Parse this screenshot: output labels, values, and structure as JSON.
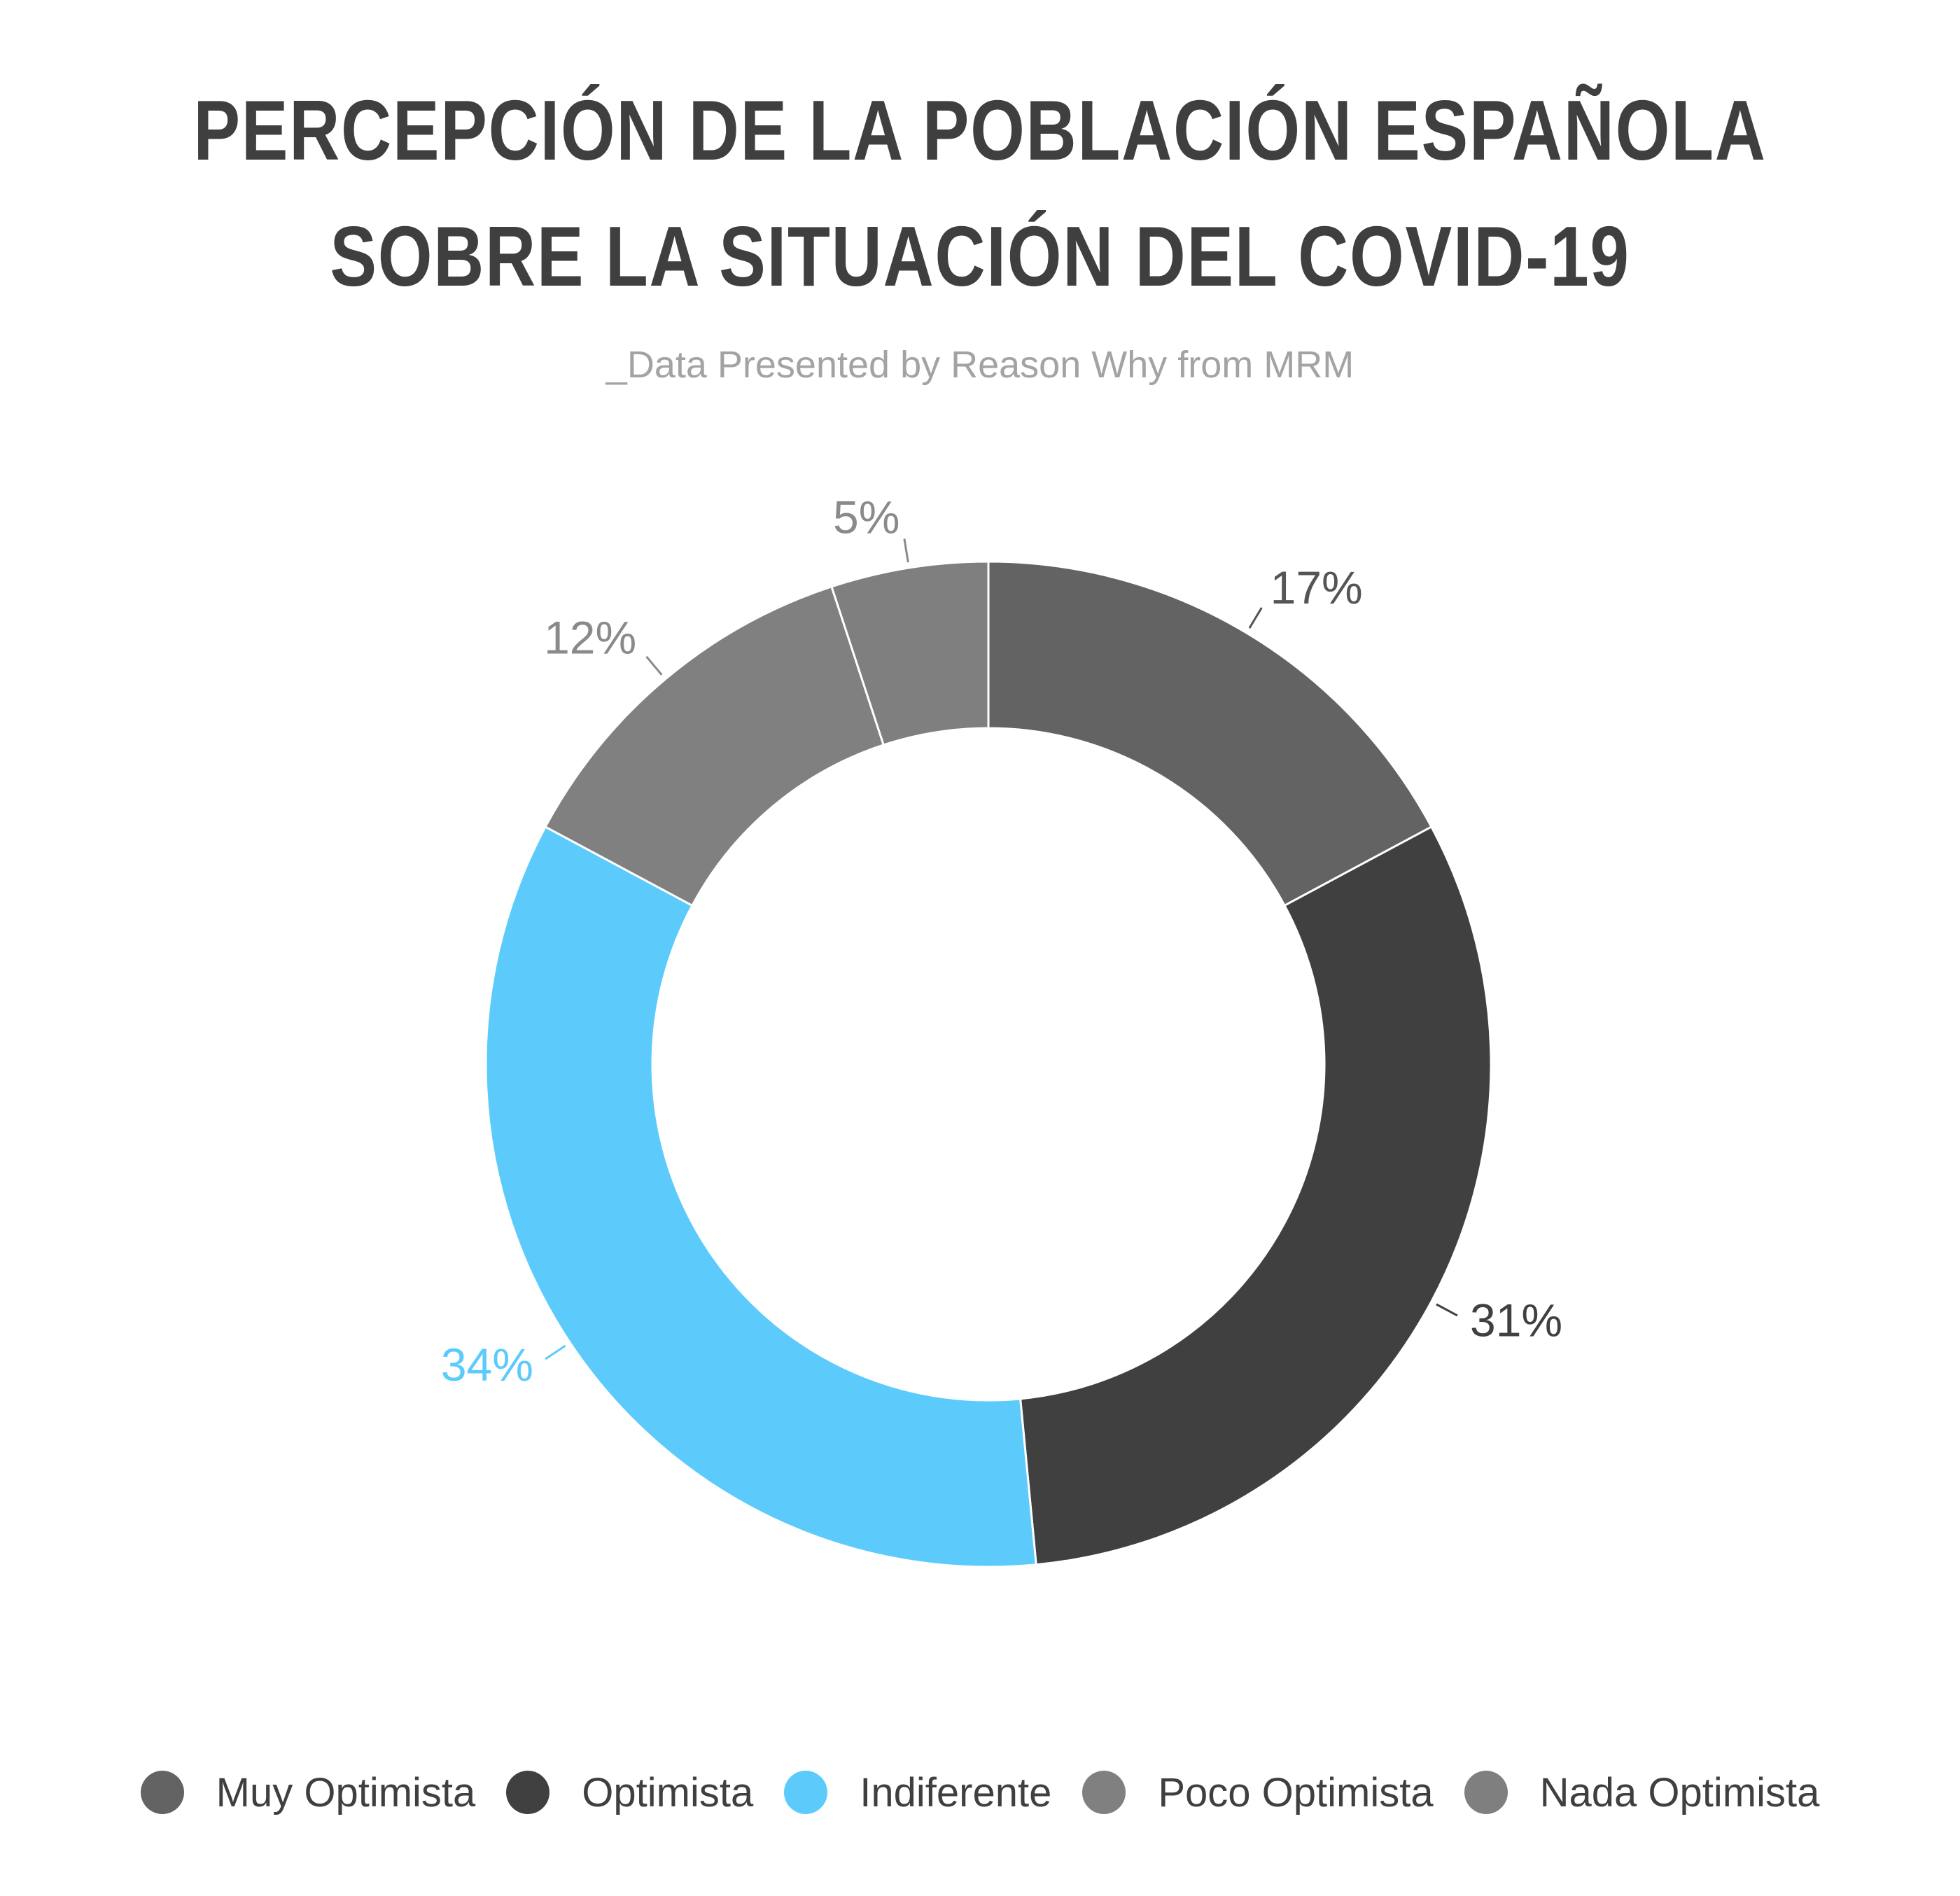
{
  "chart_data": {
    "type": "pie",
    "variant": "donut",
    "title_lines": [
      "PERCEPCIÓN DE LA POBLACIÓN ESPAÑOLA",
      "SOBRE LA SITUACIÓN DEL COVID-19"
    ],
    "subtitle": "_Data Presented by Reason Why from MRM",
    "legend_position": "bottom",
    "slices": [
      {
        "label": "Muy Optimista",
        "value": 17,
        "display": "17%",
        "color": "#636363",
        "label_color": "#555555"
      },
      {
        "label": "Optimista",
        "value": 31,
        "display": "31%",
        "color": "#404040",
        "label_color": "#404040"
      },
      {
        "label": "Indiferente",
        "value": 34,
        "display": "34%",
        "color": "#5ccbfc",
        "label_color": "#5ccbfc"
      },
      {
        "label": "Poco Optimista",
        "value": 12,
        "display": "12%",
        "color": "#808080",
        "label_color": "#8a8a8a"
      },
      {
        "label": "Nada Optimista",
        "value": 5,
        "display": "5%",
        "color": "#7f7f7f",
        "label_color": "#8a8a8a"
      }
    ]
  }
}
